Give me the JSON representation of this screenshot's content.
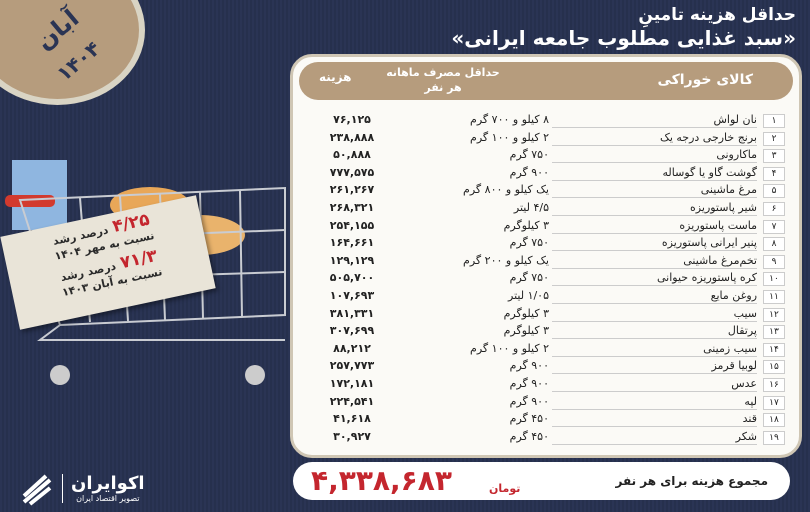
{
  "title": {
    "line1": "حداقل هزینه تامینِ",
    "line2": "«سبد غذایی مطلوب جامعه ایرانی»"
  },
  "badge": {
    "month": "آبان",
    "year": "۱۴۰۴"
  },
  "tag": {
    "growth1": "۴/۲۵",
    "growth1_label": "درصد رشد",
    "growth1_ref": "نسبت به مهر ۱۴۰۴",
    "growth2": "۷۱/۳",
    "growth2_label": "درصد رشد",
    "growth2_ref": "نسبت به آبان ۱۴۰۳"
  },
  "table": {
    "headers": {
      "item": "کالای خوراکی",
      "consumption": "حداقل مصرف ماهانه هر نفر",
      "cost": "هزینه"
    },
    "rows": [
      {
        "n": "۱",
        "name": "نان لواش",
        "cons": "۸ کیلو و ۷۰۰ گرم",
        "cost": "۷۶,۱۲۵"
      },
      {
        "n": "۲",
        "name": "برنج خارجی درجه یک",
        "cons": "۲ کیلو و ۱۰۰ گرم",
        "cost": "۲۳۸,۸۸۸"
      },
      {
        "n": "۳",
        "name": "ماکارونی",
        "cons": "۷۵۰ گرم",
        "cost": "۵۰,۸۸۸"
      },
      {
        "n": "۴",
        "name": "گوشت گاو یا گوساله",
        "cons": "۹۰۰ گرم",
        "cost": "۷۷۷,۵۷۵"
      },
      {
        "n": "۵",
        "name": "مرغ ماشینی",
        "cons": "یک کیلو و ۸۰۰ گرم",
        "cost": "۲۶۱,۲۶۷"
      },
      {
        "n": "۶",
        "name": "شیر پاستوریزه",
        "cons": "۴/۵ لیتر",
        "cost": "۲۶۸,۳۲۱"
      },
      {
        "n": "۷",
        "name": "ماست پاستوریزه",
        "cons": "۳ کیلوگرم",
        "cost": "۲۵۴,۱۵۵"
      },
      {
        "n": "۸",
        "name": "پنیر ایرانی پاستوریزه",
        "cons": "۷۵۰ گرم",
        "cost": "۱۶۴,۶۶۱"
      },
      {
        "n": "۹",
        "name": "تخم‌مرغ ماشینی",
        "cons": "یک کیلو و ۲۰۰ گرم",
        "cost": "۱۲۹,۱۲۹"
      },
      {
        "n": "۱۰",
        "name": "کره پاستوریزه حیوانی",
        "cons": "۷۵۰ گرم",
        "cost": "۵۰۵,۷۰۰"
      },
      {
        "n": "۱۱",
        "name": "روغن مایع",
        "cons": "۱/۰۵ لیتر",
        "cost": "۱۰۷,۶۹۳"
      },
      {
        "n": "۱۲",
        "name": "سیب",
        "cons": "۳ کیلوگرم",
        "cost": "۳۸۱,۳۳۱"
      },
      {
        "n": "۱۳",
        "name": "پرتقال",
        "cons": "۳ کیلوگرم",
        "cost": "۳۰۷,۶۹۹"
      },
      {
        "n": "۱۴",
        "name": "سیب زمینی",
        "cons": "۲ کیلو و ۱۰۰ گرم",
        "cost": "۸۸,۲۱۲"
      },
      {
        "n": "۱۵",
        "name": "لوبیا قرمز",
        "cons": "۹۰۰ گرم",
        "cost": "۲۵۷,۷۷۳"
      },
      {
        "n": "۱۶",
        "name": "عدس",
        "cons": "۹۰۰ گرم",
        "cost": "۱۷۲,۱۸۱"
      },
      {
        "n": "۱۷",
        "name": "لپه",
        "cons": "۹۰۰ گرم",
        "cost": "۲۲۴,۵۴۱"
      },
      {
        "n": "۱۸",
        "name": "قند",
        "cons": "۴۵۰ گرم",
        "cost": "۴۱,۶۱۸"
      },
      {
        "n": "۱۹",
        "name": "شکر",
        "cons": "۴۵۰ گرم",
        "cost": "۳۰,۹۲۷"
      }
    ]
  },
  "total": {
    "label": "مجموع هزینه برای هر نفر",
    "unit": "تومان",
    "value": "۴,۳۳۸,۶۸۳"
  },
  "logo": {
    "name": "اکوایران",
    "tagline": "تصویر اقتصاد ایران"
  },
  "colors": {
    "background": "#283251",
    "accent": "#b69c7d",
    "red": "#c4262e"
  }
}
